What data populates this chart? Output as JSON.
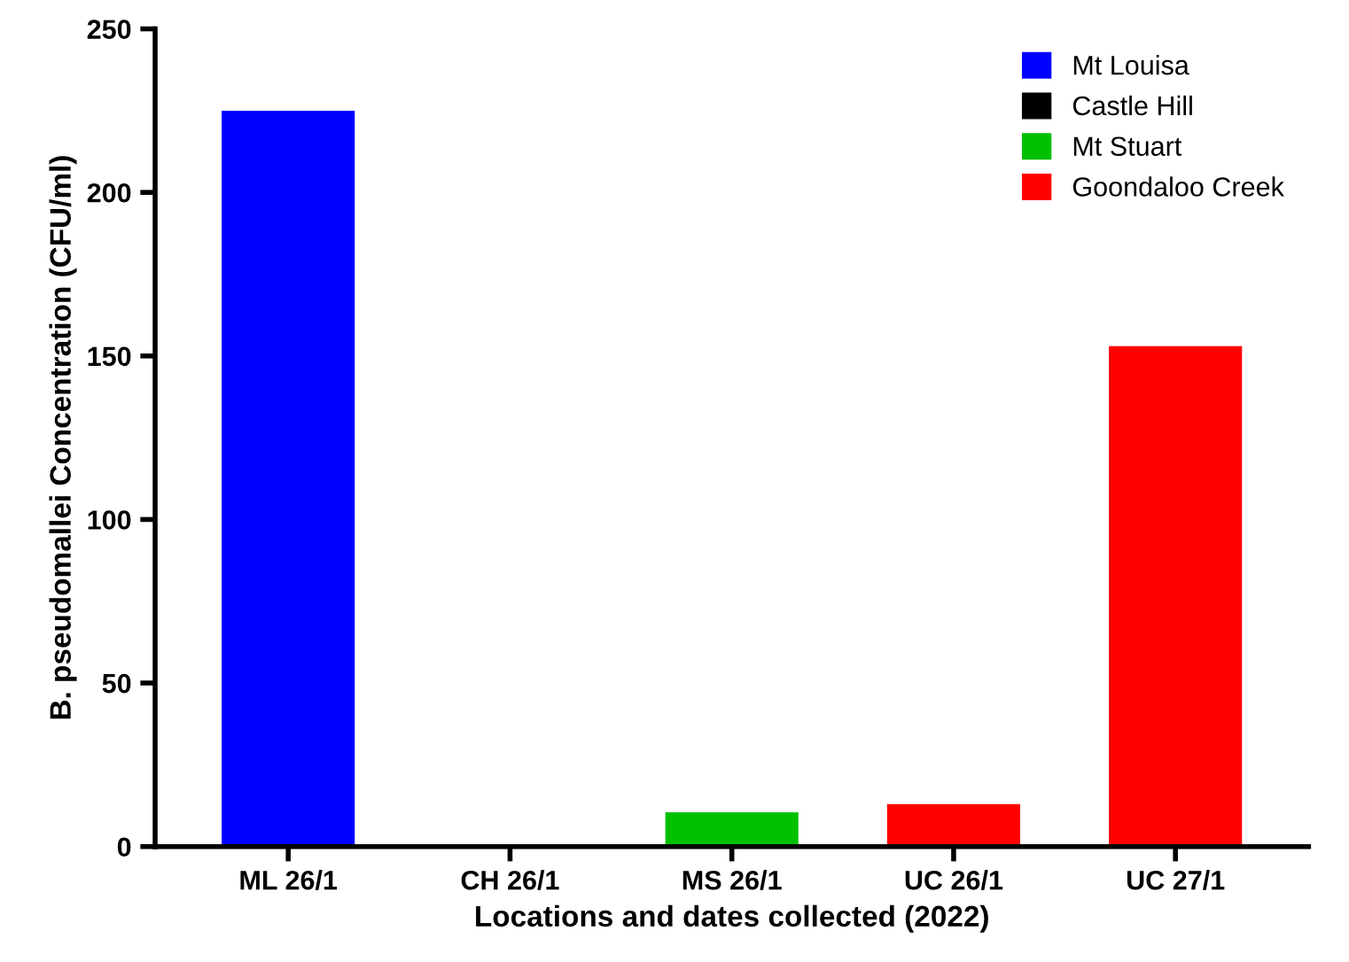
{
  "chart_data": {
    "type": "bar",
    "xlabel": "Locations and dates collected (2022)",
    "ylabel": "B. pseudomallei Concentration (CFU/ml)",
    "categories": [
      "ML 26/1",
      "CH 26/1",
      "MS 26/1",
      "UC 26/1",
      "UC 27/1"
    ],
    "series": [
      {
        "name": "Mt Louisa",
        "color": "#0000ff",
        "values": [
          225,
          null,
          null,
          null,
          null
        ]
      },
      {
        "name": "Castle Hill",
        "color": "#000000",
        "values": [
          null,
          0,
          null,
          null,
          null
        ]
      },
      {
        "name": "Mt Stuart",
        "color": "#00c000",
        "values": [
          null,
          null,
          10.5,
          null,
          null
        ]
      },
      {
        "name": "Goondaloo Creek",
        "color": "#ff0000",
        "values": [
          null,
          null,
          null,
          13,
          153
        ]
      }
    ],
    "ylim": [
      0,
      250
    ],
    "yticks": [
      0,
      50,
      100,
      150,
      200,
      250
    ],
    "grid": false,
    "legend": "top right"
  }
}
